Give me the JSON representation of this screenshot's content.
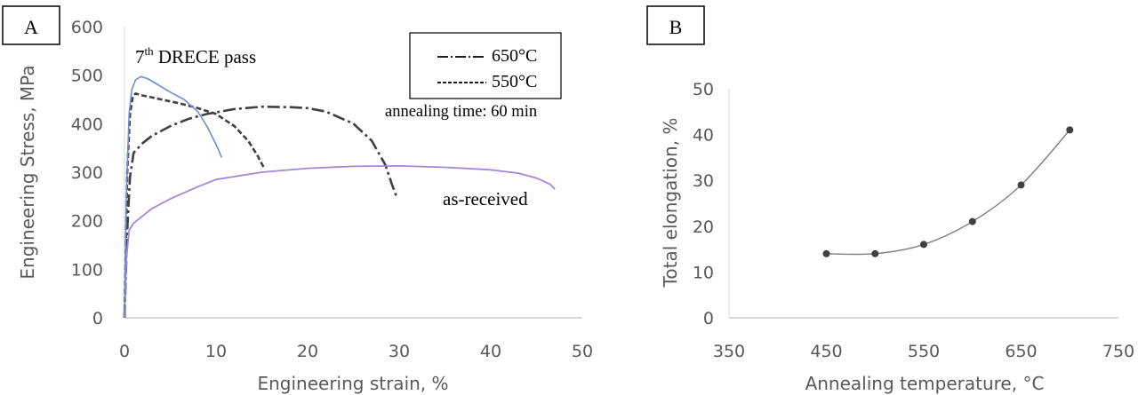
{
  "chart_data": [
    {
      "panel_label": "A",
      "type": "line",
      "xlabel": "Engineering strain, %",
      "ylabel": "Engineering Stress, MPa",
      "xlim": [
        0,
        50
      ],
      "ylim": [
        0,
        600
      ],
      "xticks": [
        "0",
        "10",
        "20",
        "30",
        "40",
        "50"
      ],
      "yticks": [
        "0",
        "100",
        "200",
        "300",
        "400",
        "500",
        "600"
      ],
      "annotation_title": {
        "base": "7",
        "sup": "th",
        "rest": " DRECE pass"
      },
      "annotation_asreceived": "as-received",
      "annotation_time": "annealing time: 60 min",
      "legend": [
        "650°C",
        "550°C"
      ],
      "colors": {
        "as_received": "#a387d9",
        "drece": "#6e8fd6",
        "annealed": "#404040"
      },
      "series": [
        {
          "name": "650°C",
          "style": "dash-dot",
          "x": [
            0,
            0.3,
            0.6,
            1.0,
            2,
            3,
            5,
            7,
            9,
            12,
            15,
            18,
            20,
            22,
            25,
            27,
            28.5,
            29.2,
            29.7
          ],
          "y": [
            0,
            180,
            290,
            340,
            360,
            375,
            395,
            410,
            420,
            430,
            435,
            434,
            432,
            425,
            400,
            365,
            315,
            275,
            250
          ]
        },
        {
          "name": "550°C",
          "style": "dashed",
          "x": [
            0,
            0.3,
            0.6,
            0.9,
            1.2,
            2,
            4,
            6,
            8,
            10,
            12,
            13.5,
            14.5,
            15.2
          ],
          "y": [
            0,
            300,
            420,
            455,
            462,
            458,
            450,
            442,
            432,
            420,
            395,
            365,
            335,
            310
          ]
        },
        {
          "name": "as-received",
          "style": "solid",
          "x": [
            0,
            0.2,
            0.5,
            1,
            2,
            3,
            5,
            8,
            10,
            15,
            20,
            25,
            30,
            35,
            40,
            43,
            45,
            46.5,
            47
          ],
          "y": [
            0,
            120,
            180,
            195,
            210,
            225,
            245,
            270,
            285,
            300,
            308,
            312,
            313,
            310,
            305,
            298,
            288,
            275,
            265
          ]
        },
        {
          "name": "7th DRECE pass",
          "style": "solid",
          "x": [
            0,
            0.2,
            0.5,
            0.8,
            1.2,
            1.8,
            2.5,
            3.5,
            5,
            6.5,
            8,
            9,
            9.8,
            10.3,
            10.6
          ],
          "y": [
            0,
            250,
            420,
            470,
            490,
            497,
            493,
            482,
            465,
            450,
            425,
            395,
            365,
            345,
            330
          ]
        }
      ]
    },
    {
      "panel_label": "B",
      "type": "scatter",
      "xlabel": "Annealing temperature, °C",
      "ylabel": "Total elongation, %",
      "xlim": [
        350,
        750
      ],
      "ylim": [
        0,
        50
      ],
      "xticks": [
        "350",
        "450",
        "550",
        "650",
        "750"
      ],
      "yticks": [
        "0",
        "10",
        "20",
        "30",
        "40",
        "50"
      ],
      "series": [
        {
          "x": [
            450,
            500,
            550,
            600,
            650,
            700
          ],
          "y": [
            14,
            14,
            16,
            21,
            29,
            41
          ]
        }
      ]
    }
  ]
}
